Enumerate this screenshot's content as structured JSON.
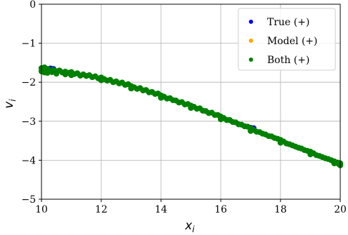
{
  "chart_data": {
    "type": "scatter",
    "title": "",
    "xlabel": {
      "base": "x",
      "sub": "i"
    },
    "ylabel": {
      "base": "v",
      "sub": "i"
    },
    "xlim": [
      10,
      20
    ],
    "ylim": [
      -5,
      0
    ],
    "xticks": [
      "10",
      "12",
      "14",
      "16",
      "18",
      "20"
    ],
    "yticks": [
      "0",
      "−1",
      "−2",
      "−3",
      "−4",
      "−5"
    ],
    "grid": true,
    "legend_position": "top-right",
    "series": [
      {
        "name": "True (+)",
        "color": "#0000ff",
        "points": [
          [
            10.3,
            -1.65
          ],
          [
            10.4,
            -1.66
          ],
          [
            17.0,
            -3.17
          ],
          [
            17.1,
            -3.18
          ]
        ]
      },
      {
        "name": "Model (+)",
        "color": "#ffa500",
        "points": []
      },
      {
        "name": "Both (+)",
        "color": "#008000",
        "points": [
          [
            10.0,
            -1.64
          ],
          [
            10.0,
            -1.72
          ],
          [
            10.05,
            -1.68
          ],
          [
            10.1,
            -1.62
          ],
          [
            10.1,
            -1.75
          ],
          [
            10.15,
            -1.7
          ],
          [
            10.2,
            -1.66
          ],
          [
            10.2,
            -1.76
          ],
          [
            10.3,
            -1.69
          ],
          [
            10.35,
            -1.74
          ],
          [
            10.4,
            -1.68
          ],
          [
            10.5,
            -1.72
          ],
          [
            10.5,
            -1.78
          ],
          [
            10.6,
            -1.7
          ],
          [
            10.7,
            -1.75
          ],
          [
            10.8,
            -1.73
          ],
          [
            10.8,
            -1.8
          ],
          [
            10.9,
            -1.76
          ],
          [
            11.0,
            -1.74
          ],
          [
            11.0,
            -1.82
          ],
          [
            11.1,
            -1.79
          ],
          [
            11.2,
            -1.77
          ],
          [
            11.3,
            -1.83
          ],
          [
            11.4,
            -1.8
          ],
          [
            11.5,
            -1.84
          ],
          [
            11.6,
            -1.82
          ],
          [
            11.7,
            -1.87
          ],
          [
            11.8,
            -1.85
          ],
          [
            11.9,
            -1.9
          ],
          [
            12.0,
            -1.88
          ],
          [
            12.0,
            -1.95
          ],
          [
            12.1,
            -1.92
          ],
          [
            12.2,
            -1.96
          ],
          [
            12.3,
            -1.94
          ],
          [
            12.4,
            -2.0
          ],
          [
            12.5,
            -1.98
          ],
          [
            12.6,
            -2.03
          ],
          [
            12.7,
            -2.01
          ],
          [
            12.8,
            -2.07
          ],
          [
            12.9,
            -2.05
          ],
          [
            13.0,
            -2.1
          ],
          [
            13.0,
            -2.16
          ],
          [
            13.1,
            -2.13
          ],
          [
            13.2,
            -2.17
          ],
          [
            13.3,
            -2.15
          ],
          [
            13.4,
            -2.21
          ],
          [
            13.5,
            -2.2
          ],
          [
            13.6,
            -2.26
          ],
          [
            13.7,
            -2.25
          ],
          [
            13.8,
            -2.3
          ],
          [
            13.9,
            -2.29
          ],
          [
            14.0,
            -2.34
          ],
          [
            14.0,
            -2.4
          ],
          [
            14.1,
            -2.37
          ],
          [
            14.2,
            -2.42
          ],
          [
            14.3,
            -2.41
          ],
          [
            14.4,
            -2.46
          ],
          [
            14.5,
            -2.47
          ],
          [
            14.6,
            -2.52
          ],
          [
            14.7,
            -2.51
          ],
          [
            14.8,
            -2.57
          ],
          [
            14.9,
            -2.56
          ],
          [
            15.0,
            -2.6
          ],
          [
            15.0,
            -2.66
          ],
          [
            15.1,
            -2.63
          ],
          [
            15.2,
            -2.68
          ],
          [
            15.3,
            -2.67
          ],
          [
            15.4,
            -2.73
          ],
          [
            15.5,
            -2.74
          ],
          [
            15.6,
            -2.79
          ],
          [
            15.7,
            -2.78
          ],
          [
            15.8,
            -2.84
          ],
          [
            15.9,
            -2.84
          ],
          [
            16.0,
            -2.88
          ],
          [
            16.0,
            -2.95
          ],
          [
            16.1,
            -2.92
          ],
          [
            16.2,
            -2.97
          ],
          [
            16.3,
            -2.97
          ],
          [
            16.4,
            -3.02
          ],
          [
            16.5,
            -3.03
          ],
          [
            16.6,
            -3.08
          ],
          [
            16.7,
            -3.09
          ],
          [
            16.8,
            -3.13
          ],
          [
            16.9,
            -3.14
          ],
          [
            17.0,
            -3.18
          ],
          [
            17.0,
            -3.25
          ],
          [
            17.1,
            -3.22
          ],
          [
            17.2,
            -3.27
          ],
          [
            17.3,
            -3.28
          ],
          [
            17.4,
            -3.32
          ],
          [
            17.5,
            -3.34
          ],
          [
            17.6,
            -3.38
          ],
          [
            17.7,
            -3.39
          ],
          [
            17.8,
            -3.43
          ],
          [
            17.9,
            -3.45
          ],
          [
            18.0,
            -3.48
          ],
          [
            18.0,
            -3.55
          ],
          [
            18.1,
            -3.52
          ],
          [
            18.2,
            -3.57
          ],
          [
            18.3,
            -3.59
          ],
          [
            18.4,
            -3.62
          ],
          [
            18.5,
            -3.65
          ],
          [
            18.6,
            -3.68
          ],
          [
            18.7,
            -3.7
          ],
          [
            18.8,
            -3.74
          ],
          [
            18.9,
            -3.76
          ],
          [
            19.0,
            -3.78
          ],
          [
            19.0,
            -3.85
          ],
          [
            19.1,
            -3.82
          ],
          [
            19.2,
            -3.87
          ],
          [
            19.3,
            -3.89
          ],
          [
            19.4,
            -3.92
          ],
          [
            19.5,
            -3.95
          ],
          [
            19.6,
            -3.97
          ],
          [
            19.7,
            -4.0
          ],
          [
            19.8,
            -4.03
          ],
          [
            19.8,
            -4.08
          ],
          [
            19.9,
            -4.06
          ],
          [
            19.95,
            -4.1
          ],
          [
            20.0,
            -4.08
          ],
          [
            20.0,
            -4.13
          ]
        ]
      }
    ]
  }
}
